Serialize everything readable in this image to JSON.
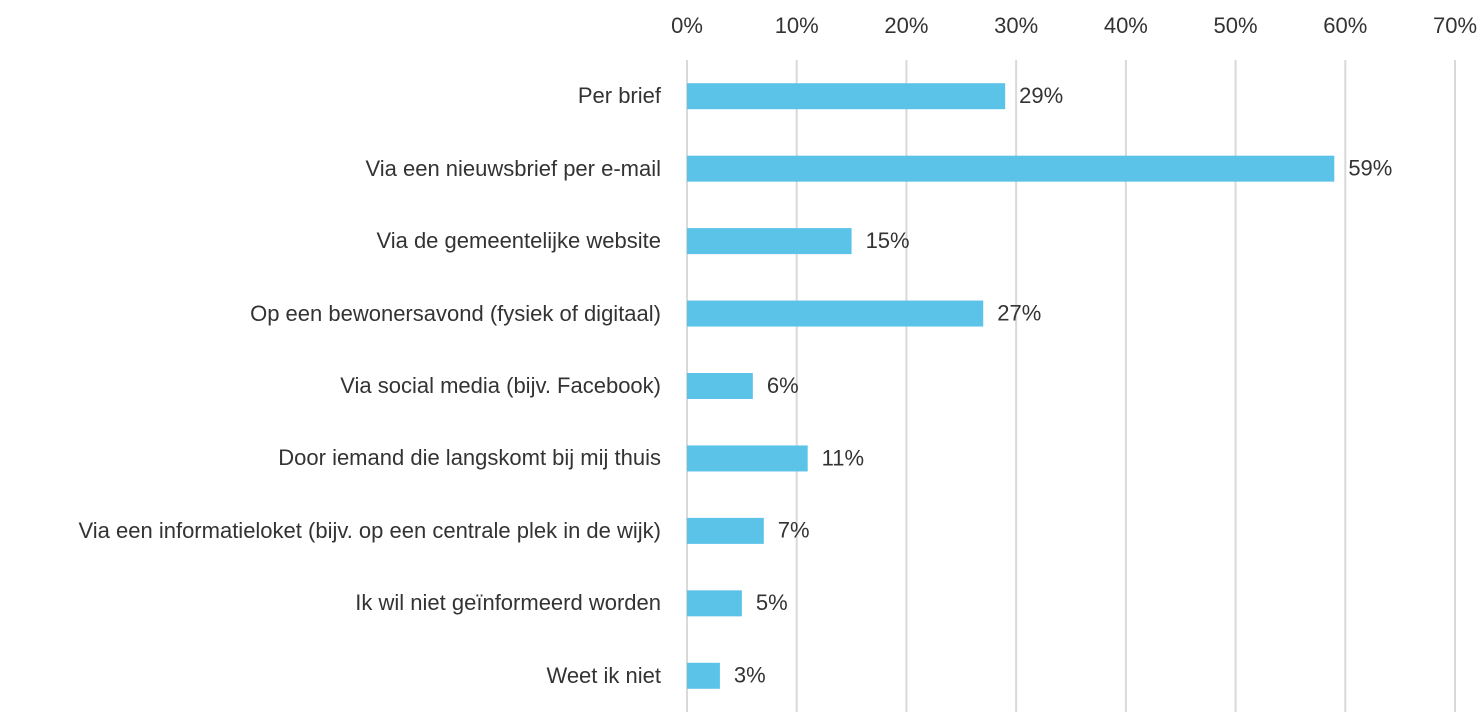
{
  "chart_data": {
    "type": "bar",
    "orientation": "horizontal",
    "categories": [
      "Per brief",
      "Via een nieuwsbrief per e-mail",
      "Via de gemeentelijke website",
      "Op een bewonersavond (fysiek of digitaal)",
      "Via social media (bijv. Facebook)",
      "Door iemand die langskomt bij mij thuis",
      "Via een informatieloket (bijv. op een centrale plek in de wijk)",
      "Ik wil niet geïnformeerd worden",
      "Weet ik niet"
    ],
    "values": [
      29,
      59,
      15,
      27,
      6,
      11,
      7,
      5,
      3
    ],
    "value_labels": [
      "29%",
      "59%",
      "15%",
      "27%",
      "6%",
      "11%",
      "7%",
      "5%",
      "3%"
    ],
    "color": "#5bc3e7",
    "xlim": [
      0,
      70
    ],
    "xticks": [
      {
        "value": 0,
        "label": "0%"
      },
      {
        "value": 10,
        "label": "10%"
      },
      {
        "value": 20,
        "label": "20%"
      },
      {
        "value": 30,
        "label": "30%"
      },
      {
        "value": 40,
        "label": "40%"
      },
      {
        "value": 50,
        "label": "50%"
      },
      {
        "value": 60,
        "label": "60%"
      },
      {
        "value": 70,
        "label": "70%"
      }
    ],
    "grid": true
  }
}
